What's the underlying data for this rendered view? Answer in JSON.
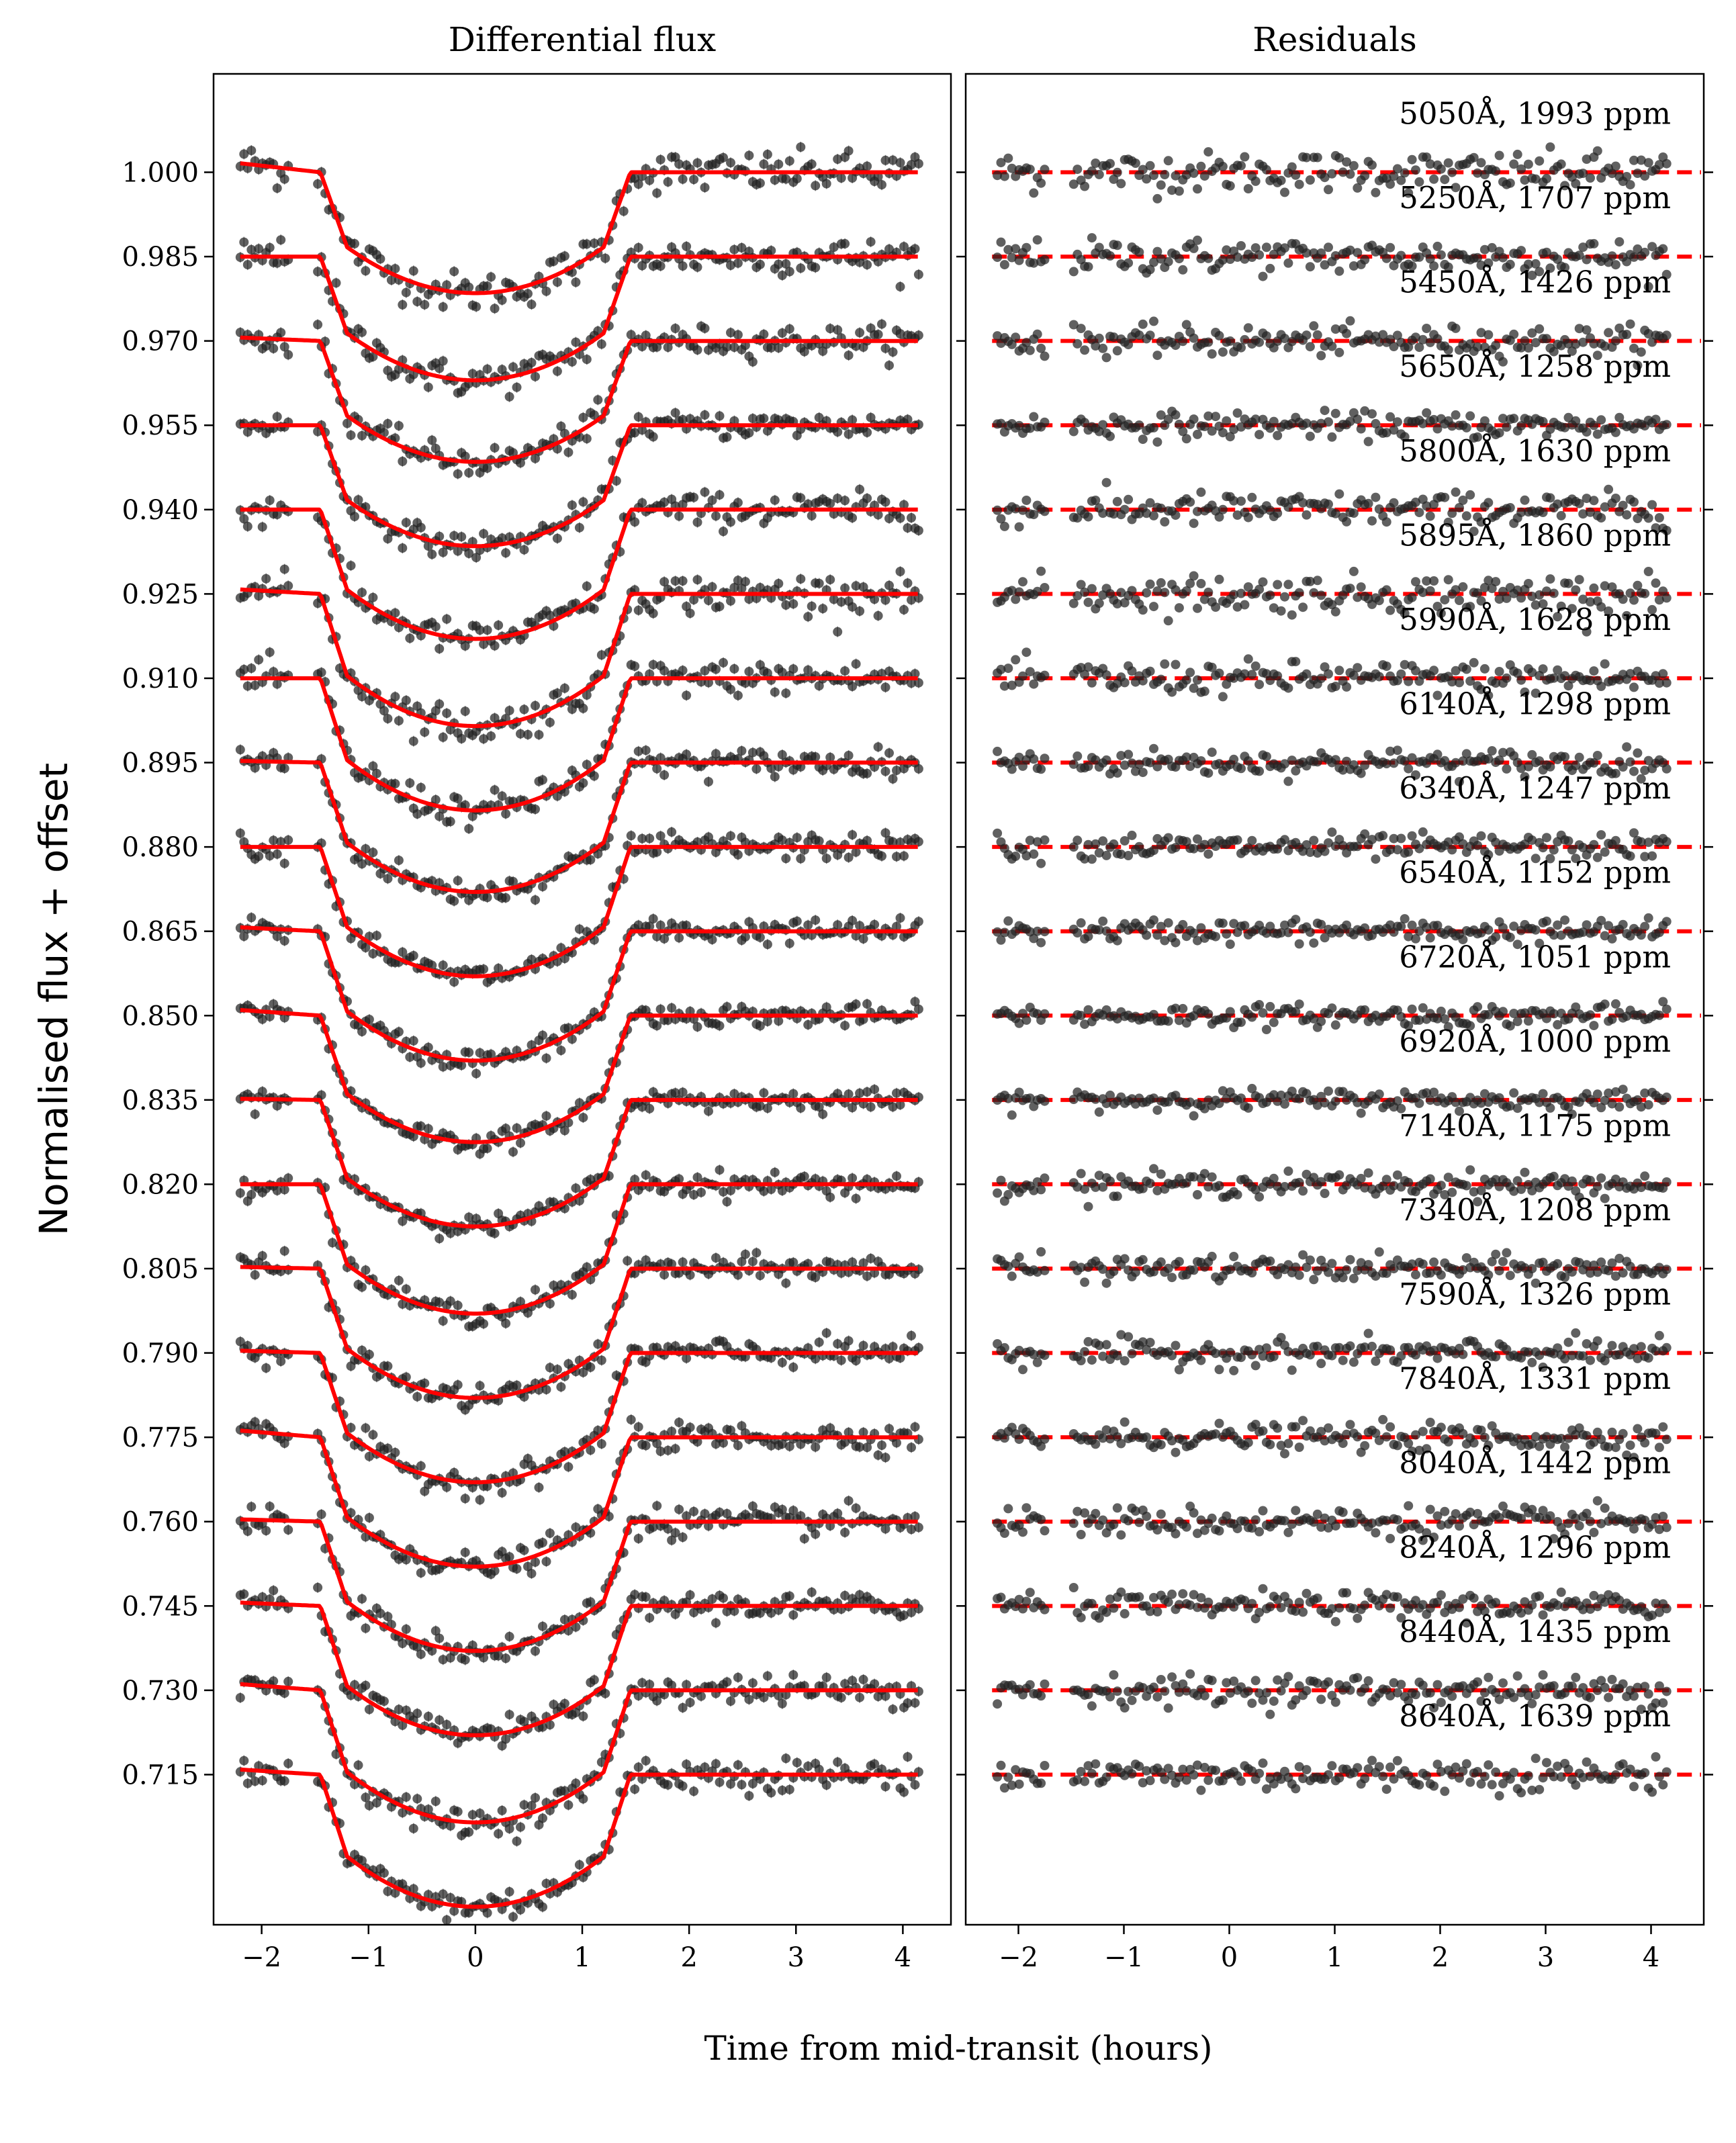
{
  "chart_data": [
    {
      "type": "scatter",
      "panel": "left",
      "title": "Differential flux",
      "ylabel": "Normalised flux + offset",
      "xlabel": "Time from mid-transit (hours)",
      "xlim": [
        -2.45,
        4.45
      ],
      "ylim": [
        0.6883,
        1.0175
      ],
      "xticks": [
        -2,
        -1,
        0,
        1,
        2,
        3,
        4
      ],
      "xtick_labels": [
        "−2",
        "−1",
        "0",
        "1",
        "2",
        "3",
        "4"
      ],
      "yticks": [
        1.0,
        0.985,
        0.97,
        0.955,
        0.94,
        0.925,
        0.91,
        0.895,
        0.88,
        0.865,
        0.85,
        0.835,
        0.82,
        0.805,
        0.79,
        0.775,
        0.76,
        0.745,
        0.73,
        0.715
      ],
      "ytick_labels": [
        "1.000",
        "0.985",
        "0.970",
        "0.955",
        "0.940",
        "0.925",
        "0.910",
        "0.895",
        "0.880",
        "0.865",
        "0.850",
        "0.835",
        "0.820",
        "0.805",
        "0.790",
        "0.775",
        "0.760",
        "0.745",
        "0.730",
        "0.715"
      ],
      "transit": {
        "ingress_start": -1.45,
        "full_start": -1.2,
        "full_end": 1.2,
        "egress_end": 1.45
      },
      "data_x_range": [
        -2.2,
        4.15
      ],
      "model_color": "#ff0000",
      "point_color": "#222222",
      "series": [
        {
          "wavelength": 5050,
          "baseline": 1.0,
          "depth": 0.0215,
          "pretransit_slope": 0.0016
        },
        {
          "wavelength": 5250,
          "baseline": 0.985,
          "depth": 0.022,
          "pretransit_slope": 0.0
        },
        {
          "wavelength": 5450,
          "baseline": 0.97,
          "depth": 0.0215,
          "pretransit_slope": 0.0006
        },
        {
          "wavelength": 5650,
          "baseline": 0.955,
          "depth": 0.0215,
          "pretransit_slope": 0.0
        },
        {
          "wavelength": 5800,
          "baseline": 0.94,
          "depth": 0.023,
          "pretransit_slope": 0.0
        },
        {
          "wavelength": 5895,
          "baseline": 0.925,
          "depth": 0.0235,
          "pretransit_slope": 0.0008
        },
        {
          "wavelength": 5990,
          "baseline": 0.91,
          "depth": 0.0235,
          "pretransit_slope": 0.0
        },
        {
          "wavelength": 6140,
          "baseline": 0.895,
          "depth": 0.023,
          "pretransit_slope": 0.0003
        },
        {
          "wavelength": 6340,
          "baseline": 0.88,
          "depth": 0.023,
          "pretransit_slope": 0.0
        },
        {
          "wavelength": 6540,
          "baseline": 0.865,
          "depth": 0.023,
          "pretransit_slope": 0.0007
        },
        {
          "wavelength": 6720,
          "baseline": 0.85,
          "depth": 0.0225,
          "pretransit_slope": 0.001
        },
        {
          "wavelength": 6920,
          "baseline": 0.835,
          "depth": 0.0225,
          "pretransit_slope": 0.0002
        },
        {
          "wavelength": 7140,
          "baseline": 0.82,
          "depth": 0.023,
          "pretransit_slope": 0.0
        },
        {
          "wavelength": 7340,
          "baseline": 0.805,
          "depth": 0.023,
          "pretransit_slope": 0.0003
        },
        {
          "wavelength": 7590,
          "baseline": 0.79,
          "depth": 0.023,
          "pretransit_slope": 0.0004
        },
        {
          "wavelength": 7840,
          "baseline": 0.775,
          "depth": 0.023,
          "pretransit_slope": 0.0012
        },
        {
          "wavelength": 8040,
          "baseline": 0.76,
          "depth": 0.023,
          "pretransit_slope": 0.0004
        },
        {
          "wavelength": 8240,
          "baseline": 0.745,
          "depth": 0.023,
          "pretransit_slope": 0.0006
        },
        {
          "wavelength": 8440,
          "baseline": 0.73,
          "depth": 0.0235,
          "pretransit_slope": 0.0011
        },
        {
          "wavelength": 8640,
          "baseline": 0.715,
          "depth": 0.0235,
          "pretransit_slope": 0.0009
        }
      ]
    },
    {
      "type": "scatter",
      "panel": "right",
      "title": "Residuals",
      "xlabel": "Time from mid-transit (hours)",
      "xlim": [
        -2.5,
        4.5
      ],
      "xticks": [
        -2,
        -1,
        0,
        1,
        2,
        3,
        4
      ],
      "xtick_labels": [
        "−2",
        "−1",
        "0",
        "1",
        "2",
        "3",
        "4"
      ],
      "zero_line_style": "dashed",
      "zero_line_color": "#ff0000",
      "series": [
        {
          "label": "5050Å, 1993 ppm",
          "baseline": 1.0,
          "rms_ppm": 1993
        },
        {
          "label": "5250Å, 1707 ppm",
          "baseline": 0.985,
          "rms_ppm": 1707
        },
        {
          "label": "5450Å, 1426 ppm",
          "baseline": 0.97,
          "rms_ppm": 1426
        },
        {
          "label": "5650Å, 1258 ppm",
          "baseline": 0.955,
          "rms_ppm": 1258
        },
        {
          "label": "5800Å, 1630 ppm",
          "baseline": 0.94,
          "rms_ppm": 1630
        },
        {
          "label": "5895Å, 1860 ppm",
          "baseline": 0.925,
          "rms_ppm": 1860
        },
        {
          "label": "5990Å, 1628 ppm",
          "baseline": 0.91,
          "rms_ppm": 1628
        },
        {
          "label": "6140Å, 1298 ppm",
          "baseline": 0.895,
          "rms_ppm": 1298
        },
        {
          "label": "6340Å, 1247 ppm",
          "baseline": 0.88,
          "rms_ppm": 1247
        },
        {
          "label": "6540Å, 1152 ppm",
          "baseline": 0.865,
          "rms_ppm": 1152
        },
        {
          "label": "6720Å, 1051 ppm",
          "baseline": 0.85,
          "rms_ppm": 1051
        },
        {
          "label": "6920Å, 1000 ppm",
          "baseline": 0.835,
          "rms_ppm": 1000
        },
        {
          "label": "7140Å, 1175 ppm",
          "baseline": 0.82,
          "rms_ppm": 1175
        },
        {
          "label": "7340Å, 1208 ppm",
          "baseline": 0.805,
          "rms_ppm": 1208
        },
        {
          "label": "7590Å, 1326 ppm",
          "baseline": 0.79,
          "rms_ppm": 1326
        },
        {
          "label": "7840Å, 1331 ppm",
          "baseline": 0.775,
          "rms_ppm": 1331
        },
        {
          "label": "8040Å, 1442 ppm",
          "baseline": 0.76,
          "rms_ppm": 1442
        },
        {
          "label": "8240Å, 1296 ppm",
          "baseline": 0.745,
          "rms_ppm": 1296
        },
        {
          "label": "8440Å, 1435 ppm",
          "baseline": 0.73,
          "rms_ppm": 1435
        },
        {
          "label": "8640Å, 1639 ppm",
          "baseline": 0.715,
          "rms_ppm": 1639
        }
      ]
    }
  ]
}
